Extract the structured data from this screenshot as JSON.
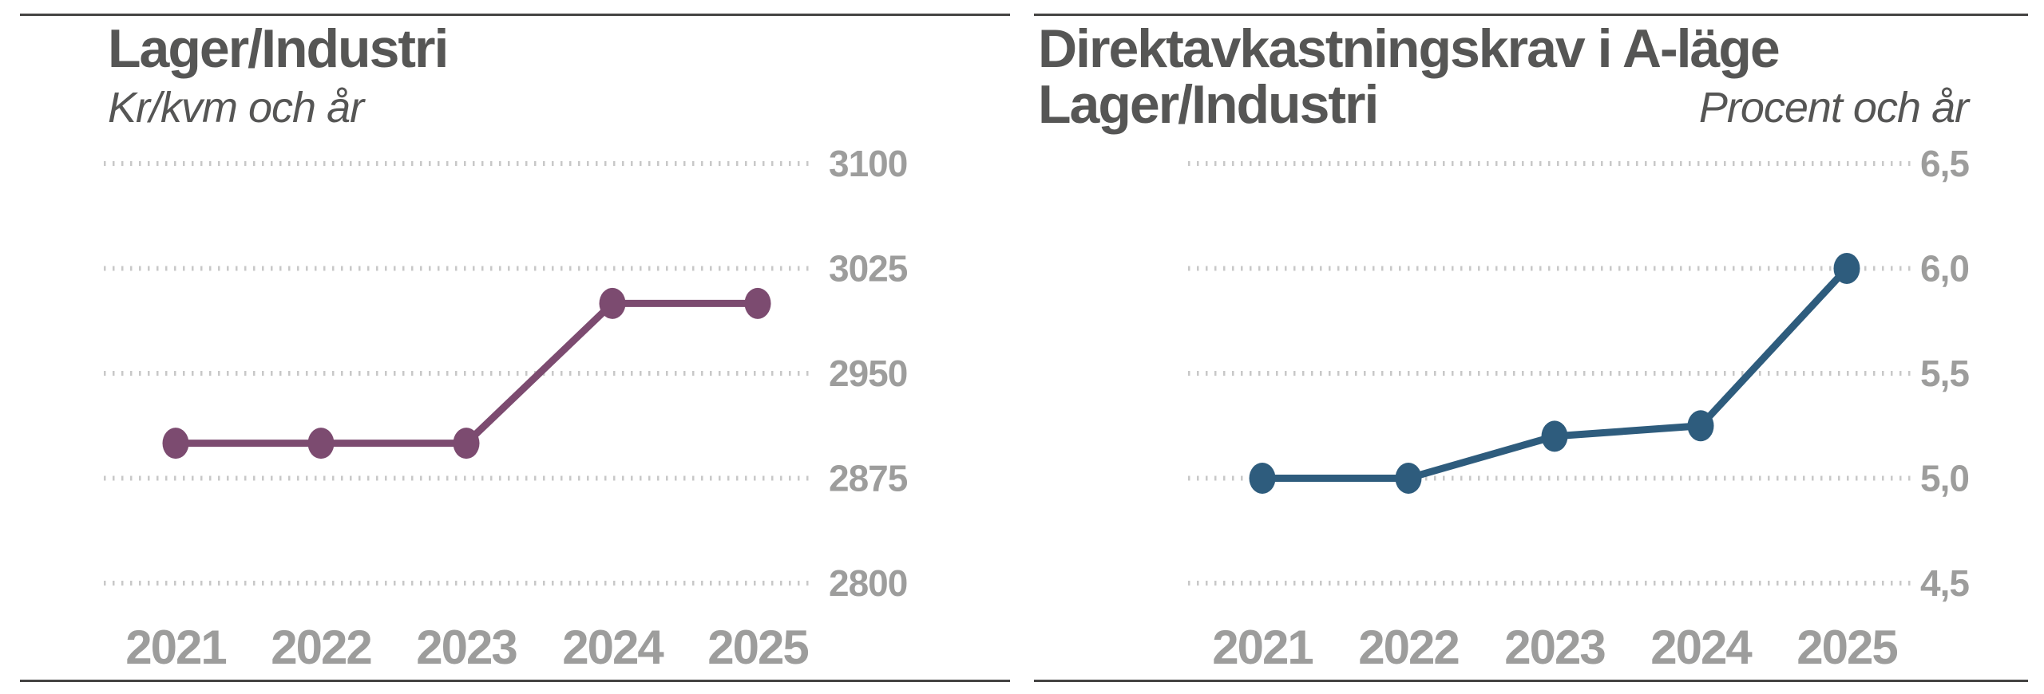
{
  "colors": {
    "title_text": "#565655",
    "axis_label_gray": "#9d9d9c",
    "gridline_gray": "#c8c8c8",
    "divider_rule": "#454443",
    "left_series_purple": "#7c4b70",
    "right_series_blue": "#2e5c7d"
  },
  "chart_data": [
    {
      "type": "line",
      "title_lines": [
        "Lager/Industri"
      ],
      "subtitle": "Kr/kvm och år",
      "categories": [
        "2021",
        "2022",
        "2023",
        "2024",
        "2025"
      ],
      "values": [
        2900,
        2900,
        2900,
        3000,
        3000
      ],
      "ytick_labels": [
        "3100",
        "3025",
        "2950",
        "2875",
        "2800"
      ],
      "ytick_values": [
        3100,
        3025,
        2950,
        2875,
        2800
      ],
      "ylim": [
        2800,
        3100
      ],
      "line_color": "#7c4b70",
      "grid": "horizontal-dotted",
      "legend": "none",
      "ylabel_position": "right"
    },
    {
      "type": "line",
      "title_lines": [
        "Direktavkastningskrav i A-läge",
        "Lager/Industri"
      ],
      "subtitle": "Procent och år",
      "categories": [
        "2021",
        "2022",
        "2023",
        "2024",
        "2025"
      ],
      "values": [
        5.0,
        5.0,
        5.2,
        5.25,
        6.0
      ],
      "ytick_labels": [
        "6,5",
        "6,0",
        "5,5",
        "5,0",
        "4,5"
      ],
      "ytick_values": [
        6.5,
        6.0,
        5.5,
        5.0,
        4.5
      ],
      "ylim": [
        4.5,
        6.5
      ],
      "line_color": "#2e5c7d",
      "grid": "horizontal-dotted",
      "legend": "none",
      "ylabel_position": "right"
    }
  ]
}
